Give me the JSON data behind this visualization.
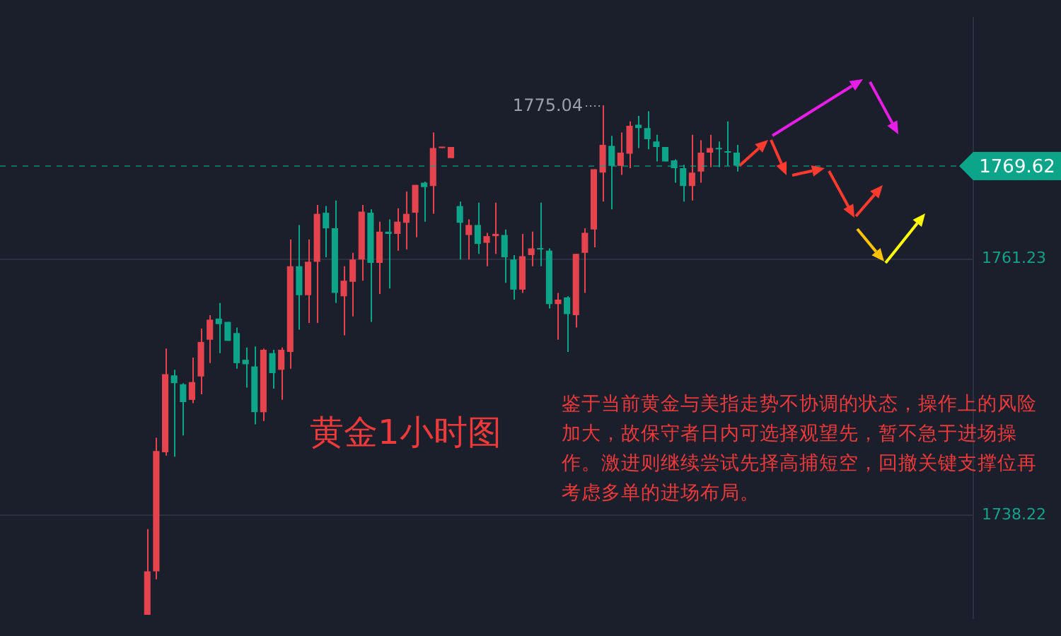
{
  "chart_data": {
    "type": "candlestick",
    "categories": [
      null,
      null,
      null,
      null,
      null,
      null,
      null,
      null,
      null,
      null,
      null,
      null,
      null,
      null,
      null,
      null,
      null,
      null,
      null,
      null,
      null,
      null,
      null,
      null,
      null,
      null,
      null,
      null,
      null,
      null,
      null,
      null,
      null,
      null,
      null,
      null,
      null,
      null,
      null,
      null,
      null,
      null,
      null,
      null,
      null,
      null,
      null,
      null,
      null,
      null,
      null,
      null,
      null,
      null,
      null,
      null,
      null,
      null,
      null,
      null,
      null,
      null,
      null,
      null,
      null,
      null,
      null,
      null,
      null,
      null,
      null,
      null,
      null,
      null,
      null,
      null,
      null,
      null,
      null,
      null,
      null,
      null,
      null,
      null,
      null,
      null,
      null,
      null,
      null,
      null,
      null,
      null,
      null,
      null,
      null,
      null,
      null,
      null,
      null,
      null,
      null,
      null,
      null,
      null,
      null,
      null,
      null,
      null,
      null
    ],
    "ohlc": [
      null,
      null,
      null,
      null,
      null,
      null,
      null,
      null,
      null,
      null,
      null,
      null,
      null,
      null,
      null,
      null,
      [
        1729.3,
        1737.0,
        1729.3,
        1733.2
      ],
      [
        1733.2,
        1745.2,
        1732.5,
        1744.0
      ],
      [
        1743.9,
        1753.2,
        1743.6,
        1750.9
      ],
      [
        1750.8,
        1751.3,
        1743.5,
        1750.1
      ],
      [
        1750.0,
        1750.1,
        1745.4,
        1748.4
      ],
      [
        1748.6,
        1752.4,
        1748.3,
        1750.2
      ],
      [
        1750.7,
        1755.0,
        1749.1,
        1753.8
      ],
      [
        1754.0,
        1756.2,
        1751.9,
        1755.8
      ],
      [
        1755.9,
        1757.3,
        1752.8,
        1755.4
      ],
      [
        1755.6,
        1755.6,
        1753.9,
        1753.9
      ],
      [
        1754.6,
        1755.1,
        1751.4,
        1751.9
      ],
      [
        1752.2,
        1753.3,
        1749.7,
        1751.8
      ],
      [
        1751.6,
        1753.4,
        1746.4,
        1747.5
      ],
      [
        1747.5,
        1753.2,
        1746.7,
        1753.1
      ],
      [
        1752.8,
        1753.1,
        1749.6,
        1751.0
      ],
      [
        1751.3,
        1753.3,
        1748.6,
        1753.1
      ],
      [
        1752.9,
        1763.0,
        1751.4,
        1760.6
      ],
      [
        1760.6,
        1764.3,
        1754.9,
        1758.0
      ],
      [
        1758.0,
        1763.0,
        1755.5,
        1761.0
      ],
      [
        1761.0,
        1766.1,
        1755.5,
        1765.3
      ],
      [
        1765.4,
        1766.0,
        1761.4,
        1764.0
      ],
      [
        1764.0,
        1766.5,
        1757.3,
        1758.2
      ],
      [
        1757.9,
        1760.6,
        1754.4,
        1759.3
      ],
      [
        1759.2,
        1761.8,
        1756.1,
        1761.2
      ],
      [
        1761.2,
        1766.1,
        1759.3,
        1765.5
      ],
      [
        1765.4,
        1765.7,
        1755.6,
        1760.9
      ],
      [
        1760.9,
        1764.6,
        1758.1,
        1763.7
      ],
      [
        1763.7,
        1764.8,
        1758.6,
        1763.5
      ],
      [
        1763.5,
        1765.8,
        1762.0,
        1764.6
      ],
      [
        1764.5,
        1767.3,
        1762.1,
        1765.3
      ],
      [
        1765.4,
        1767.9,
        1763.2,
        1767.9
      ],
      [
        1768.1,
        1768.2,
        1764.6,
        1767.7
      ],
      [
        1767.8,
        1772.6,
        1765.3,
        1771.2
      ],
      [
        1771.2,
        1771.3,
        1771.2,
        1771.3
      ],
      [
        1770.3,
        1771.3,
        1770.3,
        1771.3
      ],
      [
        1766.0,
        1766.4,
        1761.2,
        1764.5
      ],
      [
        1763.4,
        1764.8,
        1761.2,
        1764.3
      ],
      [
        1764.3,
        1766.3,
        1761.7,
        1762.6
      ],
      [
        1762.7,
        1763.6,
        1760.6,
        1763.3
      ],
      [
        1763.3,
        1766.3,
        1761.7,
        1763.5
      ],
      [
        1763.4,
        1763.9,
        1759.1,
        1761.4
      ],
      [
        1761.2,
        1761.6,
        1757.6,
        1758.5
      ],
      [
        1758.5,
        1763.5,
        1758.2,
        1761.5
      ],
      [
        1761.6,
        1763.7,
        1760.6,
        1762.2
      ],
      [
        1762.2,
        1766.3,
        1760.6,
        1762.1
      ],
      [
        1762.0,
        1762.2,
        1756.8,
        1757.2
      ],
      [
        1757.2,
        1758.2,
        1754.0,
        1757.6
      ],
      [
        1757.8,
        1757.9,
        1752.9,
        1756.3
      ],
      [
        1756.2,
        1761.7,
        1755.1,
        1761.7
      ],
      [
        1761.8,
        1764.0,
        1758.2,
        1763.6
      ],
      [
        1763.9,
        1769.3,
        1762.3,
        1769.3
      ],
      [
        1769.0,
        1775.04,
        1766.4,
        1771.5
      ],
      [
        1771.4,
        1772.3,
        1765.7,
        1769.6
      ],
      [
        1769.6,
        1772.6,
        1768.8,
        1770.8
      ],
      [
        1770.7,
        1773.6,
        1769.4,
        1773.2
      ],
      [
        1773.3,
        1774.1,
        1771.2,
        1773.0
      ],
      [
        1773.0,
        1774.5,
        1771.1,
        1772.0
      ],
      [
        1771.8,
        1772.4,
        1770.0,
        1771.3
      ],
      [
        1771.3,
        1771.3,
        1770.0,
        1770.0
      ],
      [
        1770.1,
        1770.2,
        1768.1,
        1769.4
      ],
      [
        1769.4,
        1769.7,
        1766.4,
        1767.8
      ],
      [
        1767.8,
        1772.4,
        1766.5,
        1769.0
      ],
      [
        1769.1,
        1771.9,
        1768.1,
        1770.8
      ],
      [
        1770.8,
        1772.4,
        1769.5,
        1771.2
      ],
      [
        1771.2,
        1771.8,
        1769.5,
        1771.1
      ],
      [
        1770.9,
        1773.6,
        1769.6,
        1770.8
      ],
      [
        1770.8,
        1771.5,
        1769.1,
        1769.62
      ],
      null,
      null,
      null,
      null,
      null,
      null,
      null,
      null,
      null,
      null,
      null,
      null,
      null,
      null,
      null,
      null,
      null,
      null,
      null,
      null,
      null,
      null,
      null,
      null,
      null,
      null
    ],
    "colors": [
      null,
      null,
      null,
      null,
      null,
      null,
      null,
      null,
      null,
      null,
      null,
      null,
      null,
      null,
      null,
      null,
      "#e5444f",
      "#e5444f",
      "#e5444f",
      "#0ca58a",
      "#0ca58a",
      "#e5444f",
      "#e5444f",
      "#e5444f",
      "#0ca58a",
      "#0ca58a",
      "#0ca58a",
      "#0ca58a",
      "#0ca58a",
      "#e5444f",
      "#0ca58a",
      "#e5444f",
      "#e5444f",
      "#0ca58a",
      "#e5444f",
      "#e5444f",
      "#0ca58a",
      "#0ca58a",
      "#e5444f",
      "#e5444f",
      "#e5444f",
      "#0ca58a",
      "#e5444f",
      "#0ca58a",
      "#e5444f",
      "#e5444f",
      "#e5444f",
      "#0ca58a",
      "#e5444f",
      "#e5444f",
      "#e5444f",
      "#0ca58a",
      "#e5444f",
      "#0ca58a",
      "#e5444f",
      "#e5444f",
      "#0ca58a",
      "#0ca58a",
      "#e5444f",
      "#e5444f",
      "#0ca58a",
      "#0ca58a",
      "#e5444f",
      "#0ca58a",
      "#e5444f",
      "#e5444f",
      "#e5444f",
      "#e5444f",
      "#0ca58a",
      "#e5444f",
      "#e5444f",
      "#0ca58a",
      "#0ca58a",
      "#0ca58a",
      "#0ca58a",
      "#0ca58a",
      "#0ca58a",
      "#e5444f",
      "#e5444f",
      "#e5444f",
      "#0ca58a",
      "#0ca58a",
      "#0ca58a",
      null,
      null,
      null,
      null,
      null,
      null,
      null,
      null,
      null,
      null,
      null,
      null,
      null,
      null,
      null,
      null,
      null,
      null,
      null,
      null,
      null,
      null,
      null,
      null,
      null,
      null
    ],
    "ylim": [
      1729.0,
      1782.9
    ],
    "yticks": [
      1738.22,
      1761.23
    ],
    "grid": "y",
    "tick_labels": "y",
    "ref_lines": [
      {
        "axis": "y",
        "value": 1769.62,
        "label": "1769.62",
        "color": "#0ca58a",
        "line_style": "dashed"
      }
    ],
    "annotations": [
      "1775.04",
      "黄金1小时图",
      "鉴于当前黄金与美指走势不协调的状态，操作上的风险加大，故保守者日内可选择观望先，暂不急于进场操作。激进则继续尝试先择高捕短空，回撤关键支撑位再考虑多单的进场布局。"
    ]
  }
}
